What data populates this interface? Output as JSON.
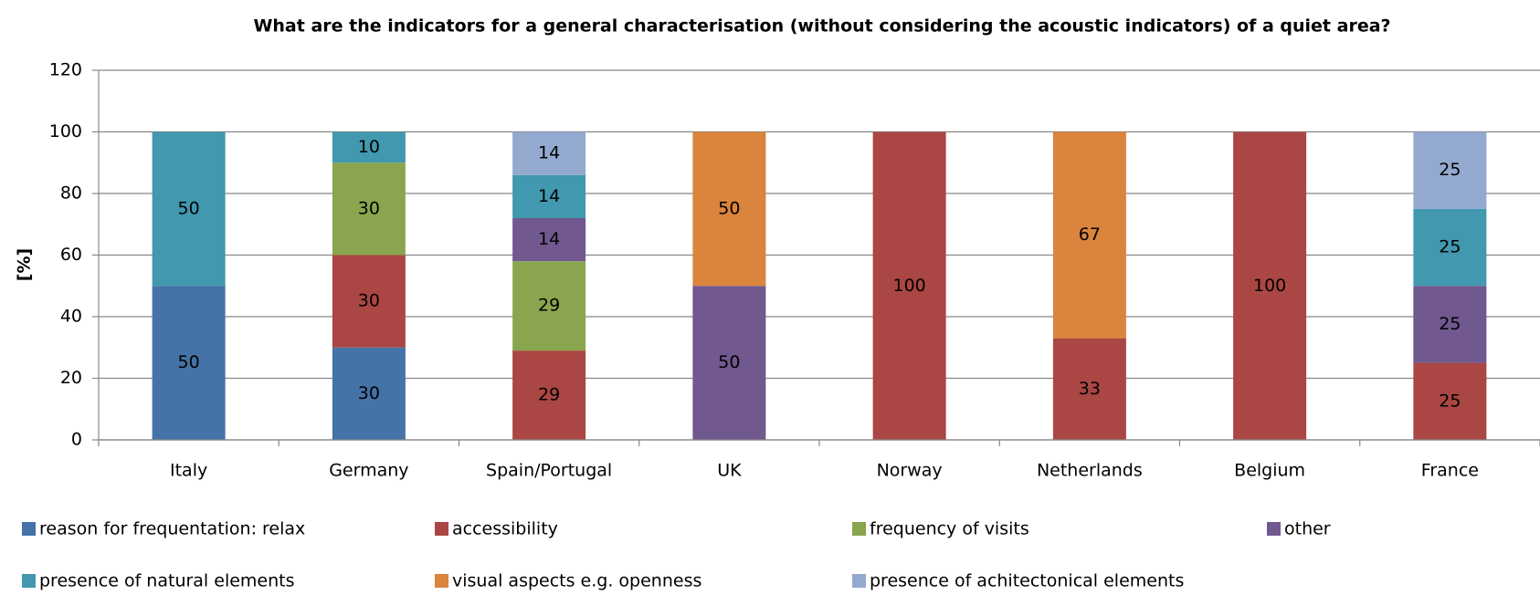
{
  "chart_data": {
    "type": "stacked_bar",
    "title": "What are the indicators for a general characterisation (without considering the acoustic indicators) of a quiet area?",
    "y_label": "[%]",
    "categories": [
      "Italy",
      "Germany",
      "Spain/Portugal",
      "UK",
      "Norway",
      "Netherlands",
      "Belgium",
      "France"
    ],
    "series": [
      {
        "name": "reason for frequentation: relax",
        "color": "#4572a7",
        "values": [
          50,
          30,
          null,
          null,
          null,
          null,
          null,
          null
        ]
      },
      {
        "name": "accessibility",
        "color": "#aa4643",
        "values": [
          null,
          30,
          29,
          null,
          100,
          33,
          100,
          25
        ]
      },
      {
        "name": "frequency of visits",
        "color": "#89a54e",
        "values": [
          null,
          30,
          29,
          null,
          null,
          null,
          null,
          null
        ]
      },
      {
        "name": "other",
        "color": "#71588f",
        "values": [
          null,
          null,
          14,
          50,
          null,
          null,
          null,
          25
        ]
      },
      {
        "name": "presence of natural elements",
        "color": "#4198af",
        "values": [
          50,
          10,
          14,
          null,
          null,
          null,
          null,
          25
        ]
      },
      {
        "name": "visual aspects e.g. openness",
        "color": "#db843d",
        "values": [
          null,
          null,
          null,
          50,
          null,
          67,
          null,
          null
        ]
      },
      {
        "name": "presence of achitectonical elements",
        "color": "#93a9cf",
        "values": [
          null,
          null,
          14,
          null,
          null,
          null,
          null,
          25
        ]
      }
    ],
    "ylim": [
      0,
      120
    ],
    "yticks": [
      0,
      20,
      40,
      60,
      80,
      100,
      120
    ],
    "grid": true
  }
}
